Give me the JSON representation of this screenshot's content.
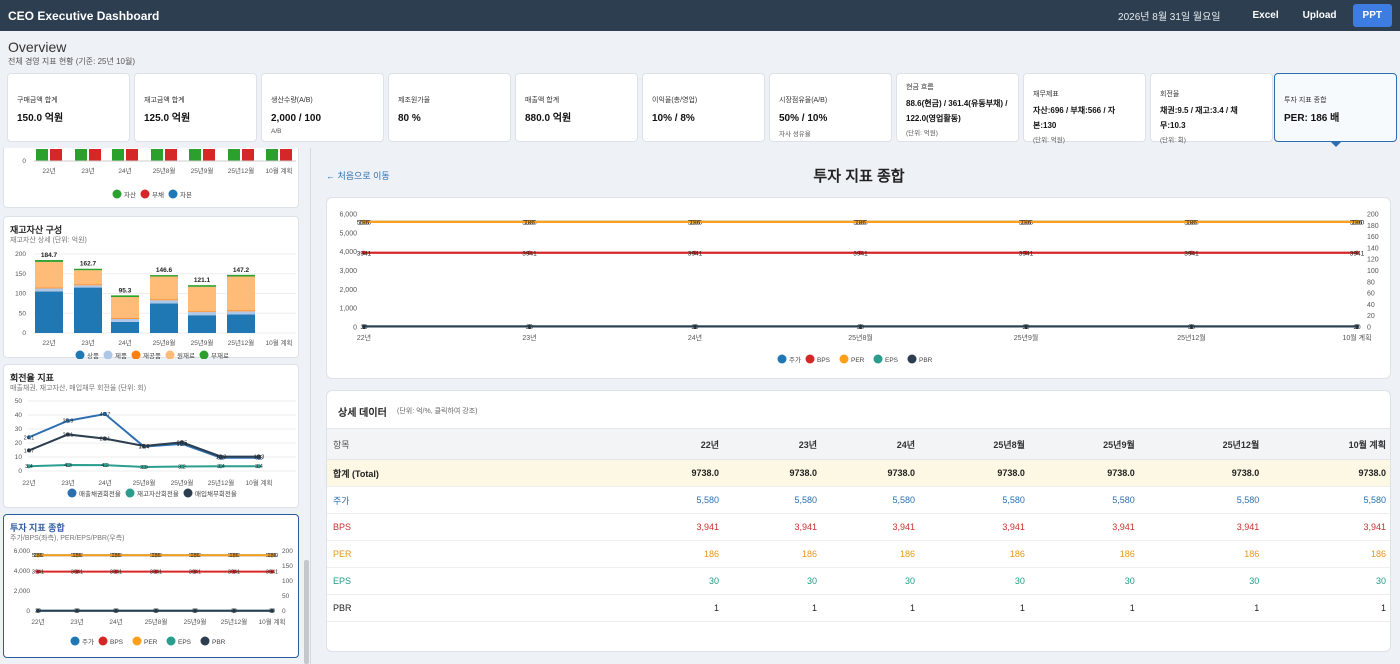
{
  "header": {
    "title": "CEO Executive Dashboard",
    "date": "2026년 8월 31일 월요일",
    "excel": "Excel",
    "upload": "Upload",
    "ppt": "PPT"
  },
  "overview": {
    "title": "Overview",
    "subtitle": "전체 경영 지표 현황 (기준: 25년 10월)"
  },
  "kpis": [
    {
      "label": "구매금액 합계",
      "value": "150.0 억원",
      "sub": ""
    },
    {
      "label": "재고금액 합계",
      "value": "125.0 억원",
      "sub": ""
    },
    {
      "label": "생산수량(A/B)",
      "value": "2,000 / 100",
      "sub": "A/B"
    },
    {
      "label": "제조원가율",
      "value": "80 %",
      "sub": ""
    },
    {
      "label": "매출액 합계",
      "value": "880.0 억원",
      "sub": ""
    },
    {
      "label": "이익율(총/영업)",
      "value": "10% / 8%",
      "sub": ""
    },
    {
      "label": "시장점유율(A/B)",
      "value": "50% / 10%",
      "sub": "자사 성유율"
    },
    {
      "label": "현금 흐름",
      "value": "88.6(현금) / 361.4(유동부채) / 122.0(영업활동)",
      "sub": "(단위: 억원)"
    },
    {
      "label": "재무제표",
      "value": "자산:696 / 부채:566 / 자본:130",
      "sub": "(단위: 억원)"
    },
    {
      "label": "회전율",
      "value": "채권:9.5 / 재고:3.4 / 채무:10.3",
      "sub": "(단위: 회)"
    },
    {
      "label": "투자 지표 종합",
      "value": "PER: 186 배",
      "sub": ""
    }
  ],
  "periods": [
    "22년",
    "23년",
    "24년",
    "25년8월",
    "25년9월",
    "25년12월",
    "10월 계획"
  ],
  "colors": {
    "asset": "#2ca02c",
    "debt": "#d62728",
    "equity": "#1f77b4",
    "price": "#1f77b4",
    "bps": "#d62728",
    "per": "#ff9f1c",
    "eps": "#2a9d8f",
    "pbr": "#2c3e50"
  },
  "balance_card": {
    "y_zero": "0",
    "legend": [
      "자산",
      "부채",
      "자본"
    ]
  },
  "inventory": {
    "title": "재고자산 구성",
    "subtitle": "재고자산 상세 (단위: 억원)",
    "y_ticks": [
      "0",
      "50",
      "100",
      "150",
      "200"
    ],
    "legend": [
      "상품",
      "제품",
      "재공품",
      "원재료",
      "부재료"
    ],
    "stack_colors": [
      "#1f77b4",
      "#aec7e8",
      "#ff7f0e",
      "#ffbb78",
      "#2ca02c"
    ],
    "totals": [
      "184.7",
      "162.7",
      "95.3",
      "146.6",
      "121.1",
      "147.2",
      ""
    ],
    "chart_data": {
      "type": "bar",
      "categories": [
        "22년",
        "23년",
        "24년",
        "25년8월",
        "25년9월",
        "25년12월",
        "10월 계획"
      ],
      "series": [
        {
          "name": "상품",
          "values": [
            105,
            115,
            28,
            75,
            45,
            47,
            0
          ]
        },
        {
          "name": "제품",
          "values": [
            8,
            6,
            8,
            8,
            8,
            8,
            0
          ]
        },
        {
          "name": "재공품",
          "values": [
            2,
            2,
            2,
            2,
            2,
            2,
            0
          ]
        },
        {
          "name": "원재료",
          "values": [
            65,
            36,
            53,
            58,
            62,
            86,
            0
          ]
        },
        {
          "name": "부재료",
          "values": [
            4.7,
            3.7,
            4.3,
            3.6,
            4.1,
            4.2,
            0
          ]
        }
      ],
      "ylim": [
        0,
        200
      ]
    }
  },
  "turnover": {
    "title": "회전율 지표",
    "subtitle": "매출채권, 재고자산, 매입채무 회전율 (단위: 회)",
    "y_ticks": [
      "0",
      "10",
      "20",
      "30",
      "40",
      "50"
    ],
    "legend": [
      "매출채권회전율",
      "재고자산회전율",
      "매입채무회전율"
    ],
    "chart_data": {
      "type": "line",
      "categories": [
        "22년",
        "23년",
        "24년",
        "25년8월",
        "25년9월",
        "25년12월",
        "10월 계획"
      ],
      "series": [
        {
          "name": "매출채권회전율",
          "values": [
            24.1,
            35.9,
            40.7,
            17.4,
            19.4,
            9.5,
            9.5
          ]
        },
        {
          "name": "재고자산회전율",
          "values": [
            3.4,
            4.3,
            4.2,
            2.9,
            3.2,
            3.4,
            3.4
          ]
        },
        {
          "name": "매입채무회전율",
          "values": [
            14.7,
            26.1,
            23.1,
            17.9,
            20.5,
            10.3,
            10.3
          ]
        }
      ],
      "ylim": [
        0,
        50
      ]
    }
  },
  "invest_small": {
    "title": "투자 지표 종합",
    "subtitle": "주가/BPS(좌측), PER/EPS/PBR(우측)",
    "y_left": [
      "0",
      "2,000",
      "4,000",
      "6,000"
    ],
    "y_right": [
      "0",
      "50",
      "100",
      "150",
      "200"
    ]
  },
  "main": {
    "back": "← 처음으로 이동",
    "title": "투자 지표 종합"
  },
  "chart_data": {
    "type": "line",
    "categories": [
      "22년",
      "23년",
      "24년",
      "25년8월",
      "25년9월",
      "25년12월",
      "10월 계획"
    ],
    "series": [
      {
        "name": "주가",
        "axis": "left",
        "values": [
          5580,
          5580,
          5580,
          5580,
          5580,
          5580,
          5580
        ]
      },
      {
        "name": "BPS",
        "axis": "left",
        "values": [
          3941,
          3941,
          3941,
          3941,
          3941,
          3941,
          3941
        ]
      },
      {
        "name": "PER",
        "axis": "right",
        "values": [
          186,
          186,
          186,
          186,
          186,
          186,
          186
        ]
      },
      {
        "name": "EPS",
        "axis": "left",
        "values": [
          30,
          30,
          30,
          30,
          30,
          30,
          30
        ]
      },
      {
        "name": "PBR",
        "axis": "right",
        "values": [
          1,
          1,
          1,
          1,
          1,
          1,
          1
        ]
      }
    ],
    "y_left_ticks": [
      "0",
      "1,000",
      "2,000",
      "3,000",
      "4,000",
      "5,000",
      "6,000"
    ],
    "y_right_ticks": [
      "0",
      "20",
      "40",
      "60",
      "80",
      "100",
      "120",
      "140",
      "160",
      "180",
      "200"
    ],
    "ylim_left": [
      0,
      6000
    ],
    "ylim_right": [
      0,
      200
    ],
    "legend": "bottom"
  },
  "detail": {
    "title": "상세 데이터",
    "note": "(단위: 억/%, 클릭하여 강조)",
    "header": [
      "항목",
      "22년",
      "23년",
      "24년",
      "25년8월",
      "25년9월",
      "25년12월",
      "10월 계획"
    ],
    "rows": [
      {
        "name": "합계 (Total)",
        "values": [
          "9738.0",
          "9738.0",
          "9738.0",
          "9738.0",
          "9738.0",
          "9738.0",
          "9738.0"
        ],
        "color": "#222222"
      },
      {
        "name": "주가",
        "values": [
          "5,580",
          "5,580",
          "5,580",
          "5,580",
          "5,580",
          "5,580",
          "5,580"
        ],
        "color": "#2c6fb0"
      },
      {
        "name": "BPS",
        "values": [
          "3,941",
          "3,941",
          "3,941",
          "3,941",
          "3,941",
          "3,941",
          "3,941"
        ],
        "color": "#c9302c"
      },
      {
        "name": "PER",
        "values": [
          "186",
          "186",
          "186",
          "186",
          "186",
          "186",
          "186"
        ],
        "color": "#e8951a"
      },
      {
        "name": "EPS",
        "values": [
          "30",
          "30",
          "30",
          "30",
          "30",
          "30",
          "30"
        ],
        "color": "#1e9b8a"
      },
      {
        "name": "PBR",
        "values": [
          "1",
          "1",
          "1",
          "1",
          "1",
          "1",
          "1"
        ],
        "color": "#222222"
      }
    ]
  }
}
